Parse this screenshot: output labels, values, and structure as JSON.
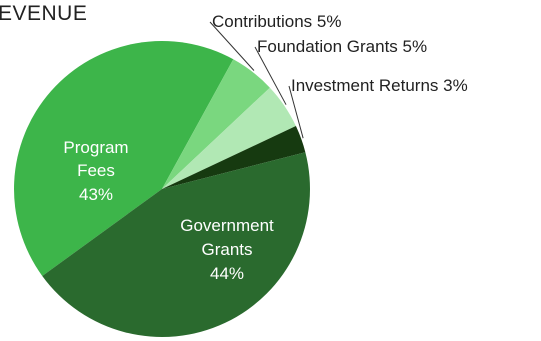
{
  "chart_data": {
    "type": "pie",
    "title": "EVENUE",
    "slices": [
      {
        "name": "Government Grants",
        "value": 44,
        "label": "44%",
        "color": "#2a6a2e",
        "label_position": "inside"
      },
      {
        "name": "Program Fees",
        "value": 43,
        "label": "43%",
        "color": "#3db54a",
        "label_position": "inside"
      },
      {
        "name": "Contributions",
        "value": 5,
        "label": "5%",
        "color": "#7ad77f",
        "label_position": "outside"
      },
      {
        "name": "Foundation Grants",
        "value": 5,
        "label": "5%",
        "color": "#b1e8b4",
        "label_position": "outside"
      },
      {
        "name": "Investment Returns",
        "value": 3,
        "label": "3%",
        "color": "#163a10",
        "label_position": "outside"
      }
    ],
    "legend": "none"
  }
}
